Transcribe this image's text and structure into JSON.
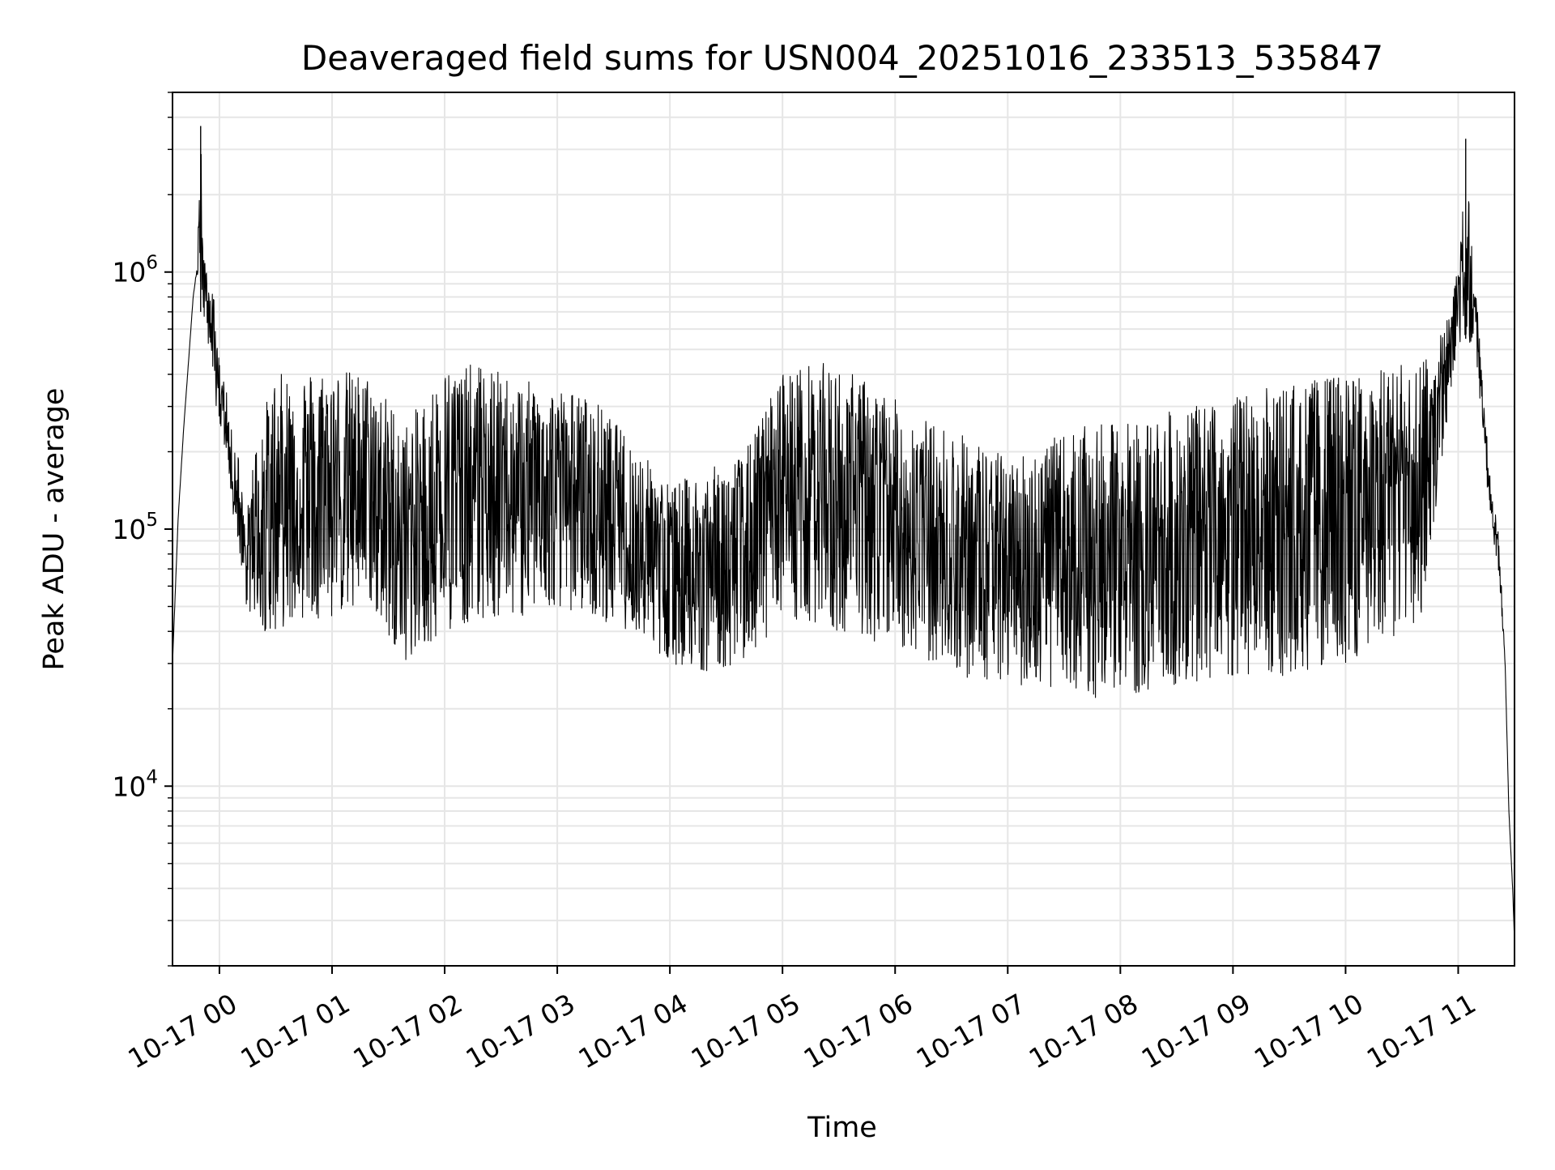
{
  "chart_data": {
    "type": "line",
    "title": "Deaveraged field sums for USN004_20251016_233513_535847",
    "xlabel": "Time",
    "ylabel": "Peak ADU - average",
    "y_scale": "log",
    "grid": true,
    "legend": "none",
    "series_color": "#000000",
    "grid_color": "#e6e6e6",
    "xlim": [
      "2025-10-16 23:35",
      "2025-10-17 11:30"
    ],
    "ylim": [
      2000,
      5000000
    ],
    "x_ticks": [
      {
        "value": "2025-10-17 00:00",
        "label": "10-17 00"
      },
      {
        "value": "2025-10-17 01:00",
        "label": "10-17 01"
      },
      {
        "value": "2025-10-17 02:00",
        "label": "10-17 02"
      },
      {
        "value": "2025-10-17 03:00",
        "label": "10-17 03"
      },
      {
        "value": "2025-10-17 04:00",
        "label": "10-17 04"
      },
      {
        "value": "2025-10-17 05:00",
        "label": "10-17 05"
      },
      {
        "value": "2025-10-17 06:00",
        "label": "10-17 06"
      },
      {
        "value": "2025-10-17 07:00",
        "label": "10-17 07"
      },
      {
        "value": "2025-10-17 08:00",
        "label": "10-17 08"
      },
      {
        "value": "2025-10-17 09:00",
        "label": "10-17 09"
      },
      {
        "value": "2025-10-17 10:00",
        "label": "10-17 10"
      },
      {
        "value": "2025-10-17 11:00",
        "label": "10-17 11"
      }
    ],
    "y_ticks": [
      {
        "value": 10000,
        "base": "10",
        "exp": "4"
      },
      {
        "value": 100000,
        "base": "10",
        "exp": "5"
      },
      {
        "value": 1000000,
        "base": "10",
        "exp": "6"
      }
    ],
    "series": [
      {
        "x": [
          "2025-10-16 23:35",
          "2025-10-16 23:38",
          "2025-10-16 23:41",
          "2025-10-16 23:44",
          "2025-10-16 23:46",
          "2025-10-16 23:48",
          "2025-10-16 23:50",
          "2025-10-16 23:52",
          "2025-10-16 23:53",
          "2025-10-16 23:55",
          "2025-10-16 23:57",
          "2025-10-16 23:58",
          "2025-10-17 00:00",
          "2025-10-17 00:03",
          "2025-10-17 00:06",
          "2025-10-17 00:10",
          "2025-10-17 00:14",
          "2025-10-17 00:18",
          "2025-10-17 00:24",
          "2025-10-17 00:30",
          "2025-10-17 00:45",
          "2025-10-17 01:00",
          "2025-10-17 01:20",
          "2025-10-17 01:40",
          "2025-10-17 02:00",
          "2025-10-17 02:20",
          "2025-10-17 02:40",
          "2025-10-17 03:00",
          "2025-10-17 03:20",
          "2025-10-17 03:40",
          "2025-10-17 04:00",
          "2025-10-17 04:20",
          "2025-10-17 04:40",
          "2025-10-17 05:00",
          "2025-10-17 05:20",
          "2025-10-17 05:40",
          "2025-10-17 06:00",
          "2025-10-17 06:20",
          "2025-10-17 06:40",
          "2025-10-17 07:00",
          "2025-10-17 07:20",
          "2025-10-17 07:40",
          "2025-10-17 08:00",
          "2025-10-17 08:20",
          "2025-10-17 08:40",
          "2025-10-17 09:00",
          "2025-10-17 09:20",
          "2025-10-17 09:40",
          "2025-10-17 10:00",
          "2025-10-17 10:20",
          "2025-10-17 10:40",
          "2025-10-17 10:50",
          "2025-10-17 10:56",
          "2025-10-17 11:00",
          "2025-10-17 11:04",
          "2025-10-17 11:08",
          "2025-10-17 11:10",
          "2025-10-17 11:12",
          "2025-10-17 11:14",
          "2025-10-17 11:16",
          "2025-10-17 11:19",
          "2025-10-17 11:22",
          "2025-10-17 11:25",
          "2025-10-17 11:27",
          "2025-10-17 11:29",
          "2025-10-17 11:30"
        ],
        "hi": [
          30000,
          110000,
          250000,
          500000,
          800000,
          1050000,
          3700000,
          1100000,
          1050000,
          900000,
          800000,
          600000,
          450000,
          380000,
          250000,
          200000,
          100000,
          200000,
          300000,
          400000,
          420000,
          430000,
          400000,
          260000,
          430000,
          440000,
          380000,
          360000,
          320000,
          220000,
          150000,
          170000,
          200000,
          420000,
          450000,
          400000,
          320000,
          260000,
          230000,
          190000,
          220000,
          250000,
          260000,
          280000,
          300000,
          330000,
          360000,
          380000,
          400000,
          420000,
          460000,
          550000,
          800000,
          1100000,
          3300000,
          1000000,
          800000,
          500000,
          300000,
          200000,
          130000,
          90000,
          30000,
          8000,
          4000,
          2500
        ],
        "lo": [
          30000,
          110000,
          250000,
          500000,
          800000,
          1000000,
          700000,
          600000,
          550000,
          500000,
          400000,
          300000,
          250000,
          200000,
          120000,
          90000,
          50000,
          45000,
          40000,
          40000,
          45000,
          45000,
          50000,
          30000,
          40000,
          45000,
          45000,
          50000,
          45000,
          40000,
          30000,
          28000,
          30000,
          45000,
          40000,
          38000,
          35000,
          30000,
          26000,
          25000,
          24000,
          22000,
          22000,
          23000,
          24000,
          25000,
          26000,
          28000,
          30000,
          35000,
          45000,
          150000,
          350000,
          500000,
          550000,
          500000,
          400000,
          300000,
          200000,
          130000,
          90000,
          60000,
          30000,
          8000,
          4000,
          2500
        ]
      }
    ]
  }
}
